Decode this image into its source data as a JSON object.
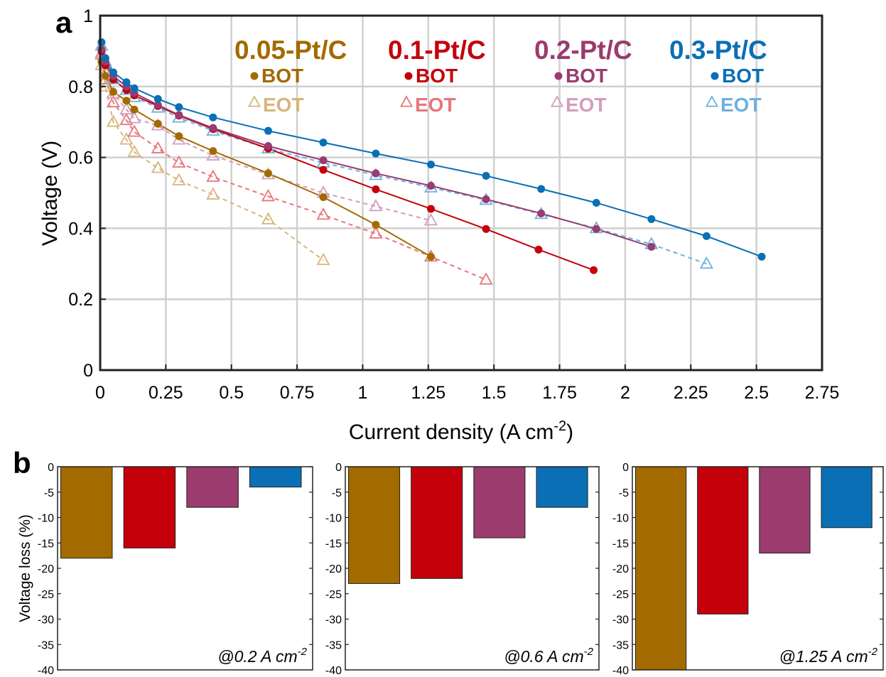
{
  "panel_labels": {
    "a": "a",
    "b": "b"
  },
  "colors": {
    "0.05-Pt/C": {
      "bot": "#a36a00",
      "eot": "#d9b57a"
    },
    "0.1-Pt/C": {
      "bot": "#c4000b",
      "eot": "#e8767c"
    },
    "0.2-Pt/C": {
      "bot": "#9b3b6e",
      "eot": "#d49dbb"
    },
    "0.3-Pt/C": {
      "bot": "#0a6fb5",
      "eot": "#6fb1de"
    }
  },
  "chart_data": [
    {
      "type": "line",
      "panel": "a",
      "xlabel": "Current density (A cm",
      "xlabel_sup": "-2",
      "xlabel_end": ")",
      "ylabel": "Voltage (V)",
      "xlim": [
        0,
        2.75
      ],
      "ylim": [
        0,
        1
      ],
      "xticks": [
        0,
        0.25,
        0.5,
        0.75,
        1,
        1.25,
        1.5,
        1.75,
        2,
        2.25,
        2.5,
        2.75
      ],
      "xtick_labels": [
        "0",
        "0.25",
        "0.5",
        "0.75",
        "1",
        "1.25",
        "1.5",
        "1.75",
        "2",
        "2.25",
        "2.5",
        "2.75"
      ],
      "yticks": [
        0,
        0.2,
        0.4,
        0.6,
        0.8,
        1
      ],
      "ytick_labels": [
        "0",
        "0.2",
        "0.4",
        "0.6",
        "0.8",
        "1"
      ],
      "grid": true,
      "legend": [
        {
          "group": "0.05-Pt/C",
          "bot_label": "BOT",
          "eot_label": "EOT"
        },
        {
          "group": "0.1-Pt/C",
          "bot_label": "BOT",
          "eot_label": "EOT"
        },
        {
          "group": "0.2-Pt/C",
          "bot_label": "BOT",
          "eot_label": "EOT"
        },
        {
          "group": "0.3-Pt/C",
          "bot_label": "BOT",
          "eot_label": "EOT"
        }
      ],
      "series": [
        {
          "group": "0.05-Pt/C",
          "kind": "BOT",
          "marker": "circle",
          "style": "solid",
          "x": [
            0.005,
            0.02,
            0.05,
            0.1,
            0.13,
            0.22,
            0.3,
            0.43,
            0.64,
            0.85,
            1.05,
            1.26
          ],
          "y": [
            0.87,
            0.83,
            0.785,
            0.76,
            0.735,
            0.695,
            0.66,
            0.618,
            0.555,
            0.488,
            0.41,
            0.32
          ]
        },
        {
          "group": "0.05-Pt/C",
          "kind": "EOT",
          "marker": "triangle",
          "style": "dashed",
          "x": [
            0.005,
            0.02,
            0.05,
            0.1,
            0.13,
            0.22,
            0.3,
            0.43,
            0.64,
            0.85
          ],
          "y": [
            0.86,
            0.8,
            0.7,
            0.65,
            0.615,
            0.57,
            0.535,
            0.495,
            0.425,
            0.31
          ]
        },
        {
          "group": "0.1-Pt/C",
          "kind": "BOT",
          "marker": "circle",
          "style": "solid",
          "x": [
            0.005,
            0.02,
            0.05,
            0.1,
            0.13,
            0.22,
            0.3,
            0.43,
            0.64,
            0.85,
            1.05,
            1.26,
            1.47,
            1.67,
            1.88
          ],
          "y": [
            0.9,
            0.86,
            0.82,
            0.79,
            0.775,
            0.745,
            0.718,
            0.68,
            0.625,
            0.565,
            0.51,
            0.455,
            0.398,
            0.34,
            0.282
          ]
        },
        {
          "group": "0.1-Pt/C",
          "kind": "EOT",
          "marker": "triangle",
          "style": "dashed",
          "x": [
            0.005,
            0.02,
            0.05,
            0.1,
            0.13,
            0.22,
            0.3,
            0.43,
            0.64,
            0.85,
            1.05,
            1.26,
            1.47
          ],
          "y": [
            0.89,
            0.82,
            0.755,
            0.705,
            0.672,
            0.625,
            0.585,
            0.545,
            0.49,
            0.438,
            0.385,
            0.32,
            0.255
          ]
        },
        {
          "group": "0.2-Pt/C",
          "kind": "BOT",
          "marker": "circle",
          "style": "solid",
          "x": [
            0.005,
            0.02,
            0.05,
            0.1,
            0.13,
            0.22,
            0.3,
            0.43,
            0.64,
            0.85,
            1.05,
            1.26,
            1.47,
            1.68,
            1.89,
            2.1
          ],
          "y": [
            0.905,
            0.87,
            0.83,
            0.8,
            0.782,
            0.748,
            0.72,
            0.683,
            0.632,
            0.592,
            0.555,
            0.52,
            0.482,
            0.442,
            0.398,
            0.348
          ]
        },
        {
          "group": "0.2-Pt/C",
          "kind": "EOT",
          "marker": "triangle",
          "style": "dashed",
          "x": [
            0.005,
            0.02,
            0.05,
            0.1,
            0.13,
            0.22,
            0.3,
            0.43,
            0.64,
            0.85,
            1.05,
            1.26
          ],
          "y": [
            0.895,
            0.84,
            0.78,
            0.735,
            0.71,
            0.69,
            0.65,
            0.605,
            0.552,
            0.5,
            0.462,
            0.422
          ]
        },
        {
          "group": "0.3-Pt/C",
          "kind": "BOT",
          "marker": "circle",
          "style": "solid",
          "x": [
            0.005,
            0.02,
            0.05,
            0.1,
            0.13,
            0.22,
            0.3,
            0.43,
            0.64,
            0.85,
            1.05,
            1.26,
            1.47,
            1.68,
            1.89,
            2.1,
            2.31,
            2.52
          ],
          "y": [
            0.925,
            0.88,
            0.84,
            0.812,
            0.795,
            0.765,
            0.742,
            0.713,
            0.675,
            0.642,
            0.611,
            0.58,
            0.548,
            0.511,
            0.472,
            0.426,
            0.378,
            0.32
          ]
        },
        {
          "group": "0.3-Pt/C",
          "kind": "EOT",
          "marker": "triangle",
          "style": "dashed",
          "x": [
            0.005,
            0.02,
            0.05,
            0.1,
            0.13,
            0.22,
            0.3,
            0.43,
            0.64,
            0.85,
            1.05,
            1.26,
            1.47,
            1.68,
            1.89,
            2.1,
            2.31
          ],
          "y": [
            0.915,
            0.87,
            0.82,
            0.79,
            0.77,
            0.74,
            0.712,
            0.675,
            0.625,
            0.585,
            0.55,
            0.515,
            0.48,
            0.44,
            0.4,
            0.355,
            0.3
          ]
        }
      ]
    },
    {
      "type": "bar",
      "panel": "b",
      "ylabel": "Voltage loss (%)",
      "ylim": [
        -40,
        0
      ],
      "yticks": [
        0,
        -5,
        -10,
        -15,
        -20,
        -25,
        -30,
        -35,
        -40
      ],
      "ytick_labels": [
        "0",
        "-5",
        "-10",
        "-15",
        "-20",
        "-25",
        "-30",
        "-35",
        "-40"
      ],
      "categories": [
        "0.05-Pt/C",
        "0.1-Pt/C",
        "0.2-Pt/C",
        "0.3-Pt/C"
      ],
      "subplots": [
        {
          "annotation": "@0.2 A cm",
          "annotation_sup": "-2",
          "values": [
            -18,
            -16,
            -8,
            -4
          ]
        },
        {
          "annotation": "@0.6 A cm",
          "annotation_sup": "-2",
          "values": [
            -23,
            -22,
            -14,
            -8
          ]
        },
        {
          "annotation": "@1.25 A cm",
          "annotation_sup": "-2",
          "values": [
            -40,
            -29,
            -17,
            -12
          ]
        }
      ]
    }
  ]
}
